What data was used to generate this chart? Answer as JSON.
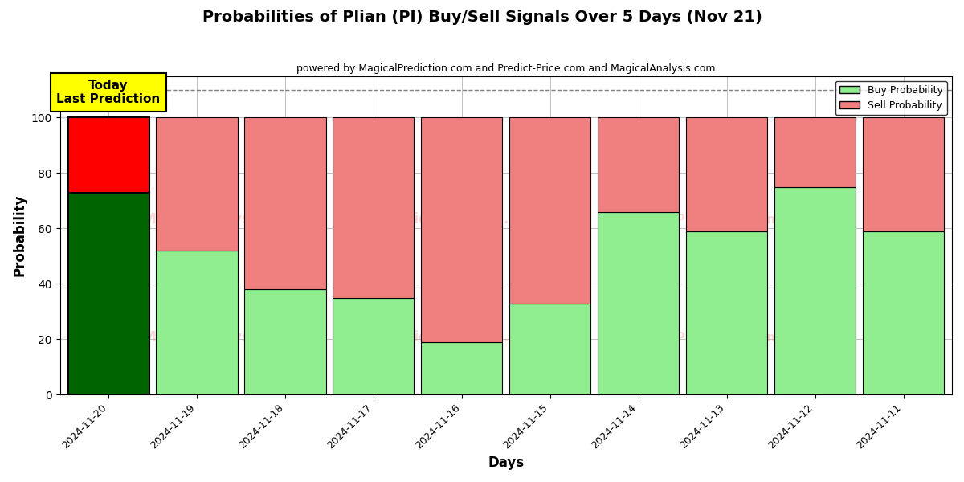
{
  "title": "Probabilities of Plian (PI) Buy/Sell Signals Over 5 Days (Nov 21)",
  "subtitle": "powered by MagicalPrediction.com and Predict-Price.com and MagicalAnalysis.com",
  "xlabel": "Days",
  "ylabel": "Probability",
  "dates": [
    "2024-11-20",
    "2024-11-19",
    "2024-11-18",
    "2024-11-17",
    "2024-11-16",
    "2024-11-15",
    "2024-11-14",
    "2024-11-13",
    "2024-11-12",
    "2024-11-11"
  ],
  "buy_values": [
    73,
    52,
    38,
    35,
    19,
    33,
    66,
    59,
    75,
    59
  ],
  "sell_values": [
    27,
    48,
    62,
    65,
    81,
    67,
    34,
    41,
    25,
    41
  ],
  "today_buy_color": "#006400",
  "today_sell_color": "#FF0000",
  "other_buy_color": "#90EE90",
  "other_sell_color": "#F08080",
  "today_annotation": "Today\nLast Prediction",
  "annotation_bg_color": "#FFFF00",
  "dashed_line_y": 110,
  "ylim": [
    0,
    115
  ],
  "yticks": [
    0,
    20,
    40,
    60,
    80,
    100
  ],
  "legend_buy_label": "Buy Probability",
  "legend_sell_label": "Sell Probability",
  "watermark_color": "#F08080",
  "watermark_alpha": 0.3,
  "bar_width": 0.92
}
